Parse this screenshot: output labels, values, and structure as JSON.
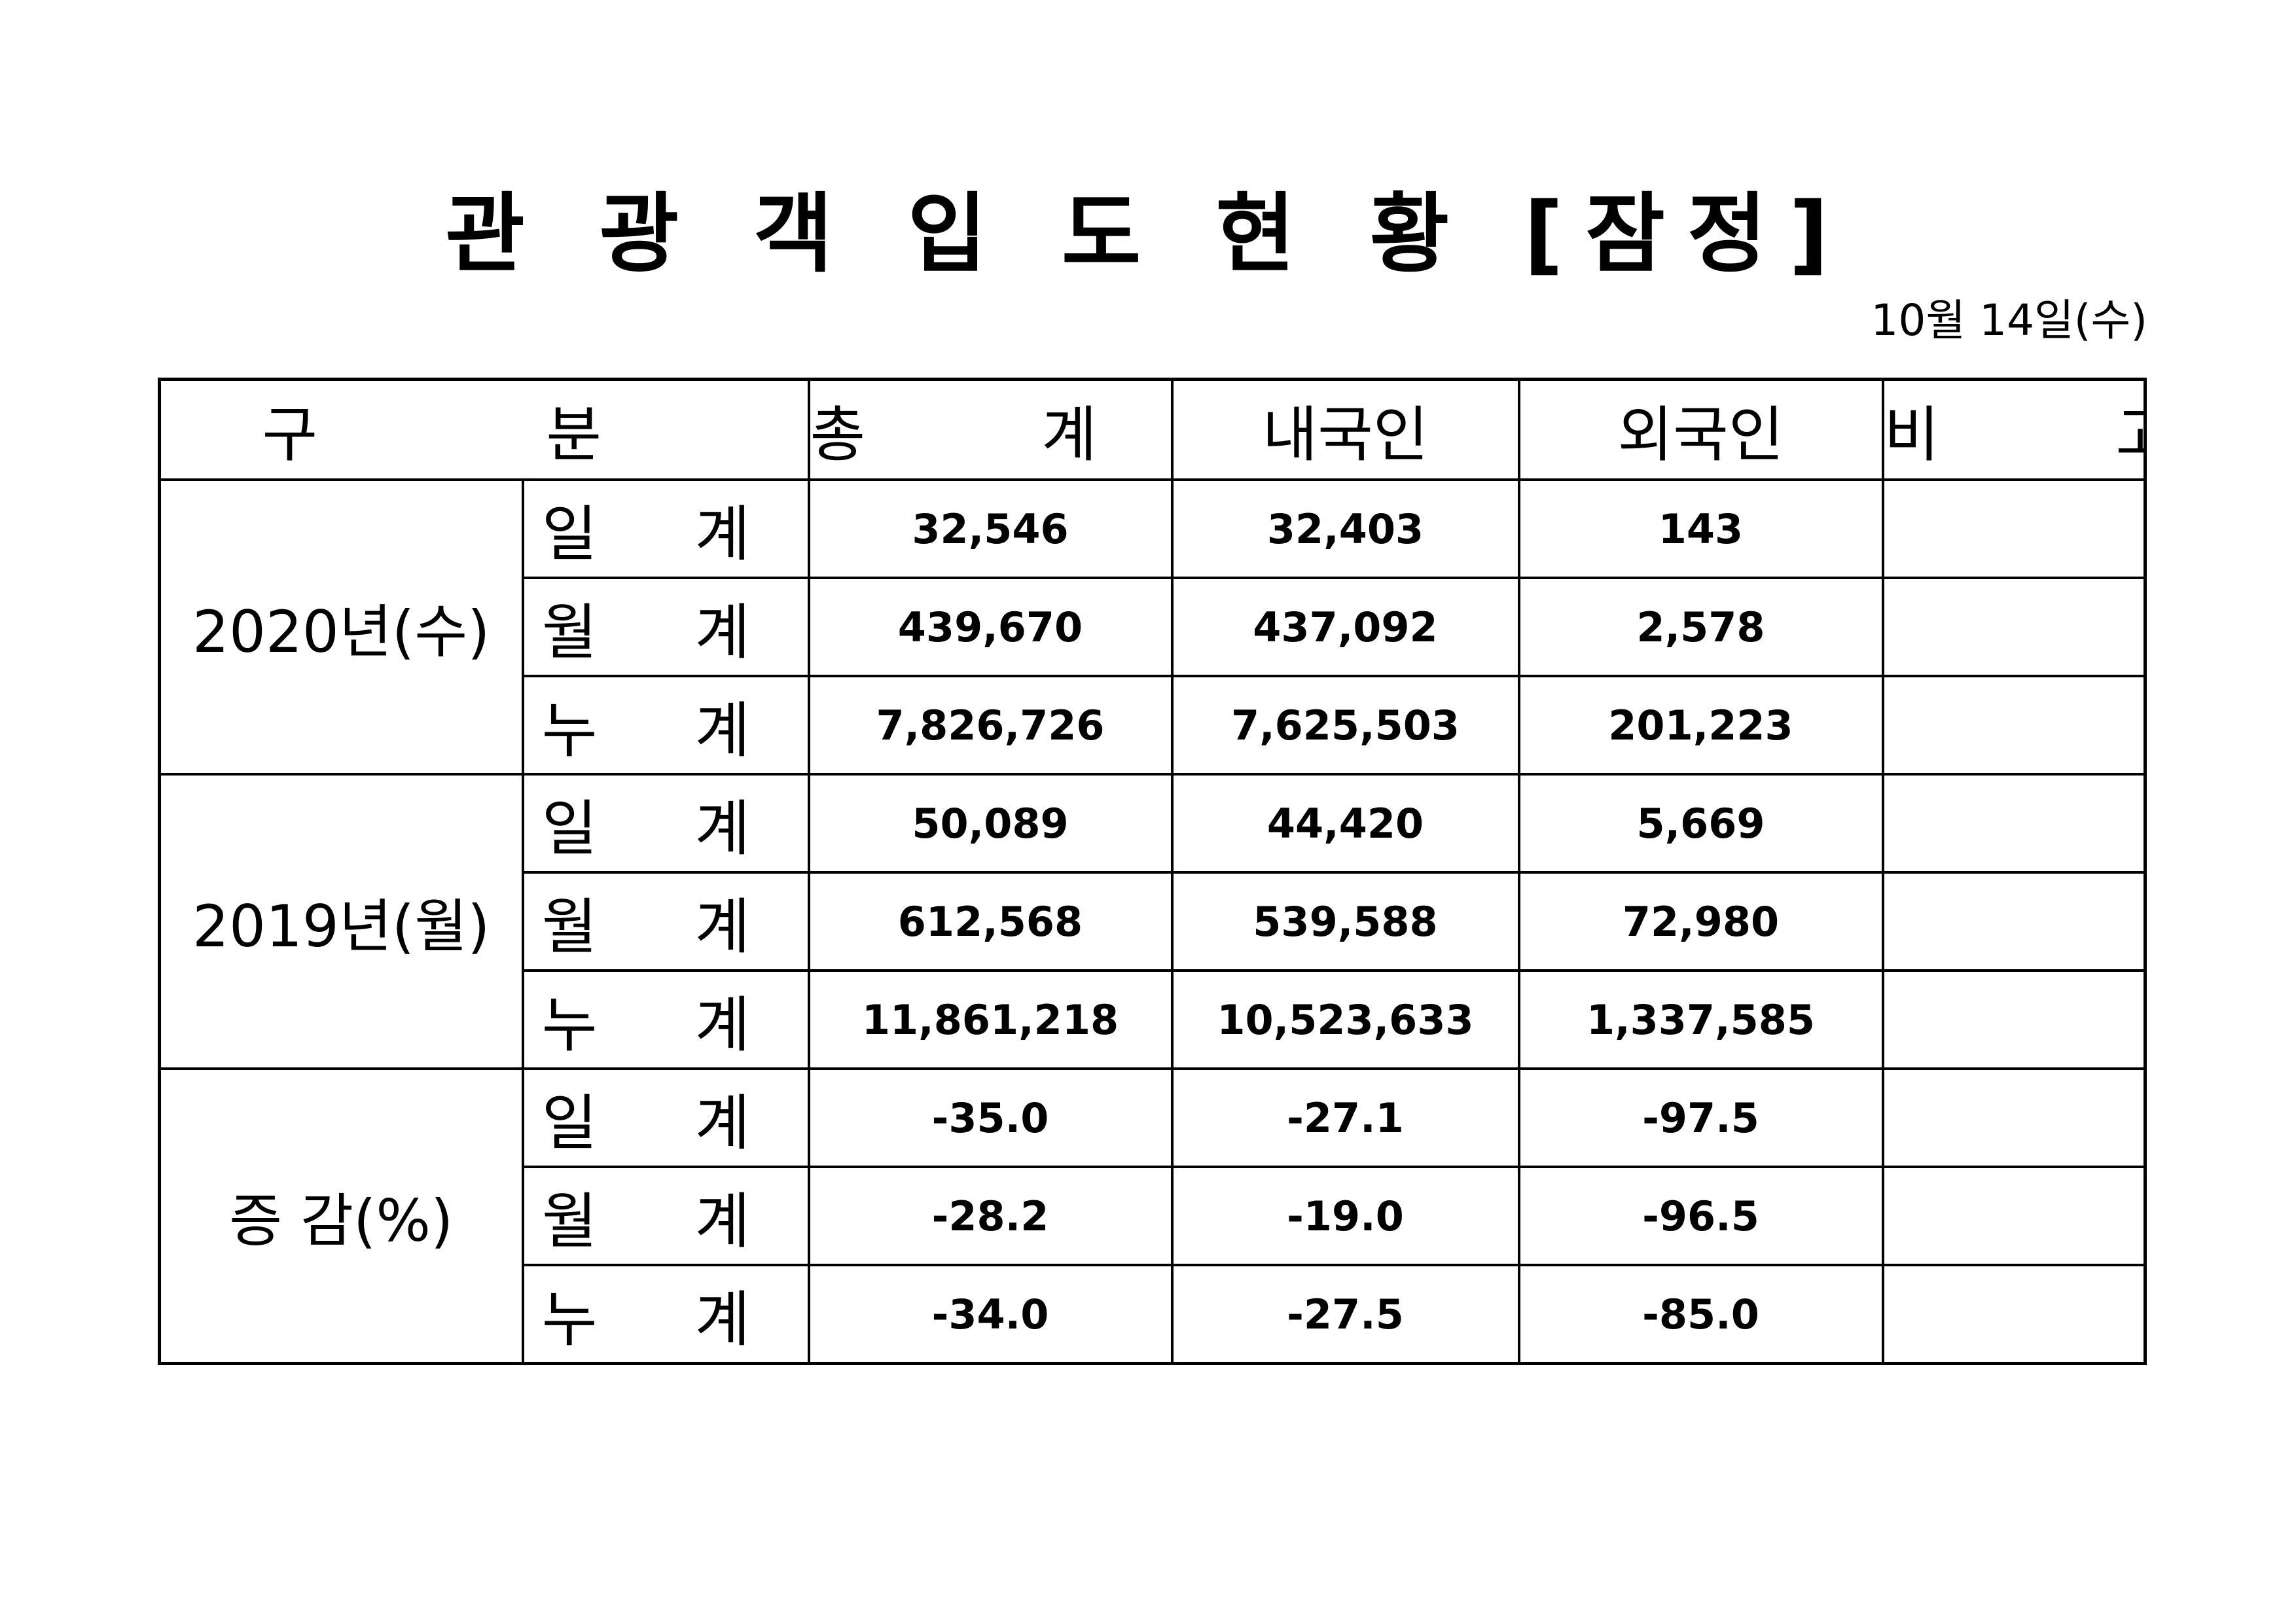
{
  "title": "관 광 객 입 도 현 황 [잠정]",
  "date": "10월  14일(수)",
  "headers": {
    "category": "구 분",
    "total": "총 계",
    "domestic": "내국인",
    "foreign": "외국인",
    "note": "비 고"
  },
  "groups": [
    {
      "label": "2020년(수)",
      "rows": [
        {
          "label": "일 계",
          "total": "32,546",
          "domestic": "32,403",
          "foreign": "143",
          "note": ""
        },
        {
          "label": "월 계",
          "total": "439,670",
          "domestic": "437,092",
          "foreign": "2,578",
          "note": ""
        },
        {
          "label": "누 계",
          "total": "7,826,726",
          "domestic": "7,625,503",
          "foreign": "201,223",
          "note": ""
        }
      ]
    },
    {
      "label": "2019년(월)",
      "rows": [
        {
          "label": "일 계",
          "total": "50,089",
          "domestic": "44,420",
          "foreign": "5,669",
          "note": ""
        },
        {
          "label": "월 계",
          "total": "612,568",
          "domestic": "539,588",
          "foreign": "72,980",
          "note": ""
        },
        {
          "label": "누 계",
          "total": "11,861,218",
          "domestic": "10,523,633",
          "foreign": "1,337,585",
          "note": ""
        }
      ]
    },
    {
      "label": "증 감(%)",
      "rows": [
        {
          "label": "일 계",
          "total": "-35.0",
          "domestic": "-27.1",
          "foreign": "-97.5",
          "note": ""
        },
        {
          "label": "월 계",
          "total": "-28.2",
          "domestic": "-19.0",
          "foreign": "-96.5",
          "note": ""
        },
        {
          "label": "누 계",
          "total": "-34.0",
          "domestic": "-27.5",
          "foreign": "-85.0",
          "note": ""
        }
      ]
    }
  ]
}
